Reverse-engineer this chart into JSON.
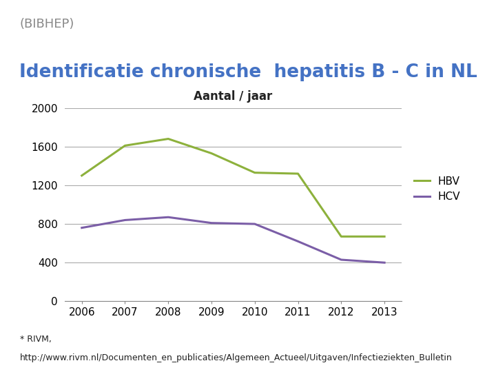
{
  "title": "Identificatie chronische  hepatitis B - C in NL",
  "subtitle": "Aantal / jaar",
  "years": [
    2006,
    2007,
    2008,
    2009,
    2010,
    2011,
    2012,
    2013
  ],
  "HBV": [
    1300,
    1610,
    1680,
    1530,
    1330,
    1320,
    670,
    670
  ],
  "HCV": [
    760,
    840,
    870,
    810,
    800,
    620,
    430,
    400
  ],
  "hbv_color": "#8db13c",
  "hcv_color": "#7b5ea7",
  "ylim": [
    0,
    2000
  ],
  "yticks": [
    0,
    400,
    800,
    1200,
    1600,
    2000
  ],
  "title_color": "#4472c4",
  "title_bg_color": "#d0d0d0",
  "background_color": "#ffffff",
  "footnote1": "* RIVM,",
  "footnote2": "http://www.rivm.nl/Documenten_en_publicaties/Algemeen_Actueel/Uitgaven/Infectieziekten_Bulletin",
  "logo_text": "(BIBHEP)",
  "line_width": 2.2,
  "title_fontsize": 19,
  "subtitle_fontsize": 12,
  "axis_fontsize": 11,
  "legend_fontsize": 11,
  "footnote_fontsize": 9,
  "logo_fontsize": 13
}
